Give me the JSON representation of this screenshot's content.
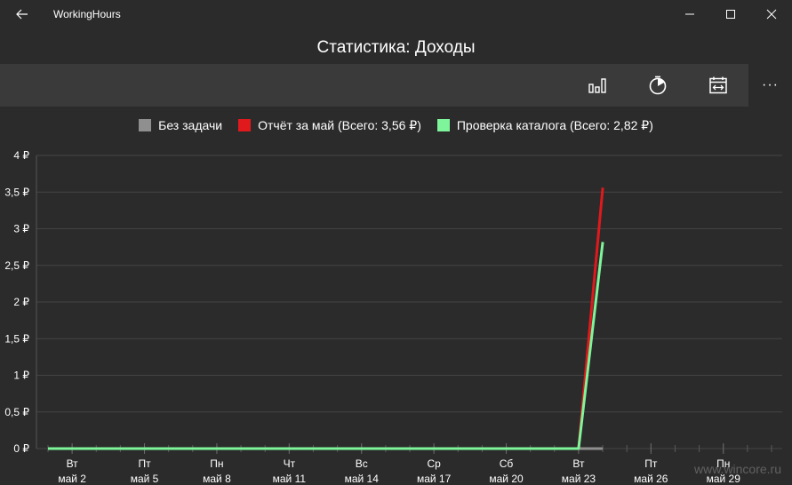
{
  "app": {
    "title": "WorkingHours"
  },
  "page": {
    "title": "Статистика: Доходы"
  },
  "titlebar_icons": {
    "back": "back-arrow-icon",
    "minimize": "minimize-icon",
    "maximize": "maximize-icon",
    "close": "close-icon"
  },
  "commandbar": {
    "buttons": [
      {
        "icon": "bar-chart-icon"
      },
      {
        "icon": "pie-clock-icon"
      },
      {
        "icon": "date-range-icon"
      }
    ],
    "more_label": "···"
  },
  "legend": [
    {
      "label": "Без задачи",
      "color": "#8f8f8f"
    },
    {
      "label": "Отчёт за май (Всего: 3,56 ₽)",
      "color": "#e0191d"
    },
    {
      "label": "Проверка каталога (Всего: 2,82 ₽)",
      "color": "#7ef59a"
    }
  ],
  "chart_data": {
    "type": "line",
    "ylim": [
      0,
      4
    ],
    "y_ticks": [
      {
        "value": 0,
        "label": "0 ₽"
      },
      {
        "value": 0.5,
        "label": "0,5 ₽"
      },
      {
        "value": 1,
        "label": "1 ₽"
      },
      {
        "value": 1.5,
        "label": "1,5 ₽"
      },
      {
        "value": 2,
        "label": "2 ₽"
      },
      {
        "value": 2.5,
        "label": "2,5 ₽"
      },
      {
        "value": 3,
        "label": "3 ₽"
      },
      {
        "value": 3.5,
        "label": "3,5 ₽"
      },
      {
        "value": 4,
        "label": "4 ₽"
      }
    ],
    "x_domain": [
      1,
      31
    ],
    "x_ticks": [
      {
        "day": 2,
        "weekday": "Вт",
        "date": "май 2"
      },
      {
        "day": 5,
        "weekday": "Пт",
        "date": "май 5"
      },
      {
        "day": 8,
        "weekday": "Пн",
        "date": "май 8"
      },
      {
        "day": 11,
        "weekday": "Чт",
        "date": "май 11"
      },
      {
        "day": 14,
        "weekday": "Вс",
        "date": "май 14"
      },
      {
        "day": 17,
        "weekday": "Ср",
        "date": "май 17"
      },
      {
        "day": 20,
        "weekday": "Сб",
        "date": "май 20"
      },
      {
        "day": 23,
        "weekday": "Вт",
        "date": "май 23"
      },
      {
        "day": 26,
        "weekday": "Пт",
        "date": "май 26"
      },
      {
        "day": 29,
        "weekday": "Пн",
        "date": "май 29"
      }
    ],
    "series": [
      {
        "name": "Без задачи",
        "color": "#8f8f8f",
        "x": [
          1,
          23,
          24
        ],
        "y": [
          0,
          0,
          0
        ]
      },
      {
        "name": "Отчёт за май (Всего: 3,56 ₽)",
        "color": "#e0191d",
        "x": [
          1,
          23,
          24
        ],
        "y": [
          0,
          0,
          3.56
        ]
      },
      {
        "name": "Проверка каталога (Всего: 2,82 ₽)",
        "color": "#7ef59a",
        "x": [
          1,
          23,
          24
        ],
        "y": [
          0,
          0,
          2.82
        ]
      }
    ],
    "grid": true
  },
  "watermark": "www.wincore.ru"
}
